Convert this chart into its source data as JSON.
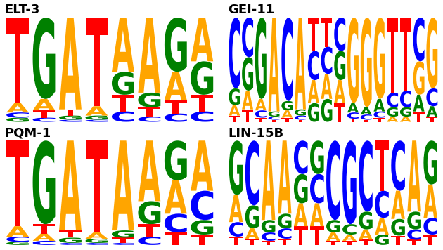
{
  "panels": [
    {
      "name": "ELT-3",
      "positions": [
        [
          [
            "T",
            0.82,
            "#ff0000"
          ],
          [
            "A",
            0.09,
            "#ffa500"
          ],
          [
            "C",
            0.05,
            "#0000ff"
          ],
          [
            "G",
            0.04,
            "#008000"
          ]
        ],
        [
          [
            "G",
            0.78,
            "#008000"
          ],
          [
            "A",
            0.11,
            "#ffa500"
          ],
          [
            "T",
            0.07,
            "#ff0000"
          ],
          [
            "C",
            0.04,
            "#0000ff"
          ]
        ],
        [
          [
            "A",
            0.88,
            "#ffa500"
          ],
          [
            "T",
            0.06,
            "#ff0000"
          ],
          [
            "G",
            0.04,
            "#008000"
          ],
          [
            "C",
            0.02,
            "#0000ff"
          ]
        ],
        [
          [
            "T",
            0.85,
            "#ff0000"
          ],
          [
            "A",
            0.09,
            "#ffa500"
          ],
          [
            "G",
            0.04,
            "#008000"
          ],
          [
            "C",
            0.02,
            "#0000ff"
          ]
        ],
        [
          [
            "A",
            0.52,
            "#ffa500"
          ],
          [
            "G",
            0.22,
            "#008000"
          ],
          [
            "T",
            0.16,
            "#ff0000"
          ],
          [
            "C",
            0.1,
            "#0000ff"
          ]
        ],
        [
          [
            "A",
            0.72,
            "#ffa500"
          ],
          [
            "G",
            0.14,
            "#008000"
          ],
          [
            "T",
            0.09,
            "#ff0000"
          ],
          [
            "C",
            0.05,
            "#0000ff"
          ]
        ],
        [
          [
            "G",
            0.52,
            "#008000"
          ],
          [
            "A",
            0.27,
            "#ffa500"
          ],
          [
            "T",
            0.13,
            "#ff0000"
          ],
          [
            "C",
            0.08,
            "#0000ff"
          ]
        ],
        [
          [
            "A",
            0.42,
            "#ffa500"
          ],
          [
            "G",
            0.32,
            "#008000"
          ],
          [
            "T",
            0.16,
            "#ff0000"
          ],
          [
            "C",
            0.1,
            "#0000ff"
          ]
        ]
      ]
    },
    {
      "name": "GEI-11",
      "positions": [
        [
          [
            "C",
            0.68,
            "#0000ff"
          ],
          [
            "G",
            0.16,
            "#008000"
          ],
          [
            "A",
            0.1,
            "#ffa500"
          ],
          [
            "T",
            0.06,
            "#ff0000"
          ]
        ],
        [
          [
            "C",
            0.38,
            "#0000ff"
          ],
          [
            "G",
            0.32,
            "#008000"
          ],
          [
            "A",
            0.18,
            "#ffa500"
          ],
          [
            "T",
            0.12,
            "#ff0000"
          ]
        ],
        [
          [
            "G",
            0.78,
            "#008000"
          ],
          [
            "A",
            0.11,
            "#ffa500"
          ],
          [
            "C",
            0.07,
            "#0000ff"
          ],
          [
            "T",
            0.04,
            "#ff0000"
          ]
        ],
        [
          [
            "A",
            0.9,
            "#ffa500"
          ],
          [
            "G",
            0.05,
            "#008000"
          ],
          [
            "C",
            0.03,
            "#0000ff"
          ],
          [
            "T",
            0.02,
            "#ff0000"
          ]
        ],
        [
          [
            "C",
            0.8,
            "#0000ff"
          ],
          [
            "G",
            0.09,
            "#008000"
          ],
          [
            "A",
            0.07,
            "#ffa500"
          ],
          [
            "T",
            0.04,
            "#ff0000"
          ]
        ],
        [
          [
            "A",
            0.88,
            "#ffa500"
          ],
          [
            "G",
            0.06,
            "#008000"
          ],
          [
            "C",
            0.04,
            "#0000ff"
          ],
          [
            "T",
            0.02,
            "#ff0000"
          ]
        ],
        [
          [
            "T",
            0.32,
            "#ff0000"
          ],
          [
            "C",
            0.28,
            "#0000ff"
          ],
          [
            "A",
            0.22,
            "#ffa500"
          ],
          [
            "G",
            0.18,
            "#008000"
          ]
        ],
        [
          [
            "T",
            0.28,
            "#ff0000"
          ],
          [
            "C",
            0.26,
            "#0000ff"
          ],
          [
            "A",
            0.24,
            "#ffa500"
          ],
          [
            "G",
            0.22,
            "#008000"
          ]
        ],
        [
          [
            "C",
            0.32,
            "#0000ff"
          ],
          [
            "G",
            0.28,
            "#008000"
          ],
          [
            "A",
            0.22,
            "#ffa500"
          ],
          [
            "T",
            0.18,
            "#ff0000"
          ]
        ],
        [
          [
            "G",
            0.82,
            "#ffa500"
          ],
          [
            "A",
            0.09,
            "#008000"
          ],
          [
            "C",
            0.06,
            "#0000ff"
          ],
          [
            "T",
            0.03,
            "#ff0000"
          ]
        ],
        [
          [
            "G",
            0.86,
            "#ffa500"
          ],
          [
            "A",
            0.07,
            "#008000"
          ],
          [
            "C",
            0.05,
            "#0000ff"
          ],
          [
            "T",
            0.02,
            "#ff0000"
          ]
        ],
        [
          [
            "G",
            0.78,
            "#ffa500"
          ],
          [
            "A",
            0.12,
            "#008000"
          ],
          [
            "C",
            0.06,
            "#0000ff"
          ],
          [
            "T",
            0.04,
            "#ff0000"
          ]
        ],
        [
          [
            "T",
            0.72,
            "#ff0000"
          ],
          [
            "C",
            0.14,
            "#0000ff"
          ],
          [
            "G",
            0.09,
            "#008000"
          ],
          [
            "A",
            0.05,
            "#ffa500"
          ]
        ],
        [
          [
            "T",
            0.7,
            "#ff0000"
          ],
          [
            "C",
            0.16,
            "#0000ff"
          ],
          [
            "G",
            0.09,
            "#008000"
          ],
          [
            "A",
            0.05,
            "#ffa500"
          ]
        ],
        [
          [
            "C",
            0.42,
            "#0000ff"
          ],
          [
            "G",
            0.32,
            "#ffa500"
          ],
          [
            "A",
            0.16,
            "#008000"
          ],
          [
            "T",
            0.1,
            "#ff0000"
          ]
        ],
        [
          [
            "G",
            0.68,
            "#ffa500"
          ],
          [
            "C",
            0.17,
            "#0000ff"
          ],
          [
            "A",
            0.1,
            "#008000"
          ],
          [
            "T",
            0.05,
            "#ff0000"
          ]
        ]
      ]
    },
    {
      "name": "PQM-1",
      "positions": [
        [
          [
            "T",
            0.82,
            "#ff0000"
          ],
          [
            "A",
            0.1,
            "#ffa500"
          ],
          [
            "C",
            0.05,
            "#0000ff"
          ],
          [
            "G",
            0.03,
            "#008000"
          ]
        ],
        [
          [
            "G",
            0.8,
            "#008000"
          ],
          [
            "T",
            0.09,
            "#ff0000"
          ],
          [
            "A",
            0.07,
            "#ffa500"
          ],
          [
            "C",
            0.04,
            "#0000ff"
          ]
        ],
        [
          [
            "A",
            0.86,
            "#ffa500"
          ],
          [
            "T",
            0.07,
            "#ff0000"
          ],
          [
            "G",
            0.05,
            "#008000"
          ],
          [
            "C",
            0.02,
            "#0000ff"
          ]
        ],
        [
          [
            "T",
            0.88,
            "#ff0000"
          ],
          [
            "A",
            0.06,
            "#ffa500"
          ],
          [
            "G",
            0.04,
            "#008000"
          ],
          [
            "C",
            0.02,
            "#0000ff"
          ]
        ],
        [
          [
            "A",
            0.86,
            "#ffa500"
          ],
          [
            "G",
            0.07,
            "#008000"
          ],
          [
            "T",
            0.05,
            "#ff0000"
          ],
          [
            "C",
            0.02,
            "#0000ff"
          ]
        ],
        [
          [
            "A",
            0.58,
            "#ffa500"
          ],
          [
            "G",
            0.22,
            "#008000"
          ],
          [
            "T",
            0.12,
            "#ff0000"
          ],
          [
            "C",
            0.08,
            "#0000ff"
          ]
        ],
        [
          [
            "G",
            0.38,
            "#008000"
          ],
          [
            "A",
            0.32,
            "#ffa500"
          ],
          [
            "C",
            0.18,
            "#0000ff"
          ],
          [
            "T",
            0.12,
            "#ff0000"
          ]
        ],
        [
          [
            "A",
            0.48,
            "#ffa500"
          ],
          [
            "C",
            0.28,
            "#0000ff"
          ],
          [
            "G",
            0.14,
            "#008000"
          ],
          [
            "T",
            0.1,
            "#ff0000"
          ]
        ]
      ]
    },
    {
      "name": "LIN-15B",
      "positions": [
        [
          [
            "G",
            0.52,
            "#008000"
          ],
          [
            "A",
            0.26,
            "#ffa500"
          ],
          [
            "C",
            0.14,
            "#0000ff"
          ],
          [
            "T",
            0.08,
            "#ff0000"
          ]
        ],
        [
          [
            "C",
            0.62,
            "#0000ff"
          ],
          [
            "G",
            0.22,
            "#008000"
          ],
          [
            "A",
            0.1,
            "#ffa500"
          ],
          [
            "T",
            0.06,
            "#ff0000"
          ]
        ],
        [
          [
            "A",
            0.76,
            "#ffa500"
          ],
          [
            "G",
            0.12,
            "#008000"
          ],
          [
            "C",
            0.08,
            "#0000ff"
          ],
          [
            "T",
            0.04,
            "#ff0000"
          ]
        ],
        [
          [
            "A",
            0.7,
            "#ffa500"
          ],
          [
            "G",
            0.14,
            "#008000"
          ],
          [
            "C",
            0.1,
            "#0000ff"
          ],
          [
            "T",
            0.06,
            "#ff0000"
          ]
        ],
        [
          [
            "C",
            0.32,
            "#0000ff"
          ],
          [
            "G",
            0.28,
            "#008000"
          ],
          [
            "A",
            0.22,
            "#ffa500"
          ],
          [
            "T",
            0.18,
            "#ff0000"
          ]
        ],
        [
          [
            "G",
            0.32,
            "#008000"
          ],
          [
            "C",
            0.28,
            "#0000ff"
          ],
          [
            "A",
            0.22,
            "#ffa500"
          ],
          [
            "T",
            0.18,
            "#ff0000"
          ]
        ],
        [
          [
            "C",
            0.76,
            "#0000ff"
          ],
          [
            "G",
            0.12,
            "#008000"
          ],
          [
            "A",
            0.08,
            "#ffa500"
          ],
          [
            "T",
            0.04,
            "#ff0000"
          ]
        ],
        [
          [
            "G",
            0.8,
            "#0000ff"
          ],
          [
            "C",
            0.1,
            "#008000"
          ],
          [
            "A",
            0.06,
            "#ffa500"
          ],
          [
            "T",
            0.04,
            "#ff0000"
          ]
        ],
        [
          [
            "C",
            0.68,
            "#0000ff"
          ],
          [
            "G",
            0.17,
            "#008000"
          ],
          [
            "A",
            0.1,
            "#ffa500"
          ],
          [
            "T",
            0.05,
            "#ff0000"
          ]
        ],
        [
          [
            "T",
            0.48,
            "#ff0000"
          ],
          [
            "C",
            0.26,
            "#0000ff"
          ],
          [
            "A",
            0.16,
            "#ffa500"
          ],
          [
            "G",
            0.1,
            "#008000"
          ]
        ],
        [
          [
            "C",
            0.48,
            "#0000ff"
          ],
          [
            "A",
            0.27,
            "#ffa500"
          ],
          [
            "G",
            0.16,
            "#008000"
          ],
          [
            "T",
            0.09,
            "#ff0000"
          ]
        ],
        [
          [
            "A",
            0.68,
            "#ffa500"
          ],
          [
            "G",
            0.17,
            "#008000"
          ],
          [
            "C",
            0.1,
            "#0000ff"
          ],
          [
            "T",
            0.05,
            "#ff0000"
          ]
        ],
        [
          [
            "G",
            0.42,
            "#008000"
          ],
          [
            "A",
            0.32,
            "#ffa500"
          ],
          [
            "C",
            0.16,
            "#0000ff"
          ],
          [
            "T",
            0.1,
            "#ff0000"
          ]
        ]
      ]
    }
  ],
  "bg_color": "#ffffff",
  "title_fontsize": 13,
  "fig_width": 6.3,
  "fig_height": 3.56,
  "dpi": 100
}
